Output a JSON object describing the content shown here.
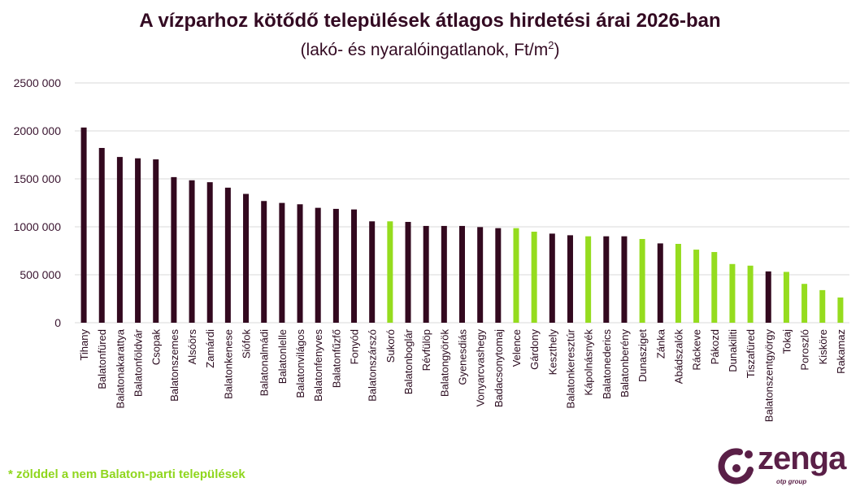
{
  "chart_data": {
    "type": "bar",
    "title": "A vízparhoz kötődő települések átlagos hirdetési árai 2026-ban",
    "subtitle": "(lakó- és nyaralóingatlanok, Ft/m",
    "subtitle_sup": "2",
    "subtitle_end": ")",
    "ylim": [
      0,
      2500000
    ],
    "yticks": [
      0,
      500000,
      1000000,
      1500000,
      2000000,
      2500000
    ],
    "ytick_labels": [
      "0",
      "500 000",
      "1000 000",
      "1500 000",
      "2000 000",
      "2500 000"
    ],
    "grid": true,
    "colors": {
      "balaton": "#33091f",
      "non_balaton": "#95dc1e"
    },
    "categories": [
      "Tihany",
      "Balatonfüred",
      "Balatonakarattya",
      "Balatonföldvár",
      "Csopak",
      "Balatonszemes",
      "Alsóörs",
      "Zamárdi",
      "Balatonkenese",
      "Siófok",
      "Balatonalmádi",
      "Balatonlelle",
      "Balatonvilágos",
      "Balatonfenyves",
      "Balatonfűzfő",
      "Fonyód",
      "Balatonszárszó",
      "Sukoró",
      "Balatonboglár",
      "Révfülöp",
      "Balatongyörök",
      "Gyenesdiás",
      "Vonyarcvashegy",
      "Badacsonytomaj",
      "Velence",
      "Gárdony",
      "Keszthely",
      "Balatonkeresztúr",
      "Kápolnásnyék",
      "Balatonederics",
      "Balatonberény",
      "Dunasziget",
      "Zánka",
      "Abádszalók",
      "Ráckeve",
      "Pákozd",
      "Dunakiliti",
      "Tiszafüred",
      "Balatonszentgyörgy",
      "Tokaj",
      "Poroszló",
      "Kisköre",
      "Rakamaz"
    ],
    "values": [
      2035000,
      1822000,
      1728000,
      1714000,
      1703000,
      1518000,
      1485000,
      1465000,
      1408000,
      1343000,
      1269000,
      1249000,
      1235000,
      1198000,
      1187000,
      1181000,
      1057000,
      1057000,
      1051000,
      1009000,
      1009000,
      1009000,
      997000,
      986000,
      986000,
      949000,
      929000,
      912000,
      901000,
      901000,
      901000,
      873000,
      827000,
      822000,
      762000,
      737000,
      612000,
      595000,
      535000,
      530000,
      405000,
      340000,
      263000
    ],
    "non_balaton": [
      false,
      false,
      false,
      false,
      false,
      false,
      false,
      false,
      false,
      false,
      false,
      false,
      false,
      false,
      false,
      false,
      false,
      true,
      false,
      false,
      false,
      false,
      false,
      false,
      true,
      true,
      false,
      false,
      true,
      false,
      false,
      true,
      false,
      true,
      true,
      true,
      true,
      true,
      false,
      true,
      true,
      true,
      true
    ]
  },
  "footnote": "* zölddel a nem Balaton-parti települések",
  "logo": {
    "word": "zenga",
    "sub": "otp group"
  }
}
